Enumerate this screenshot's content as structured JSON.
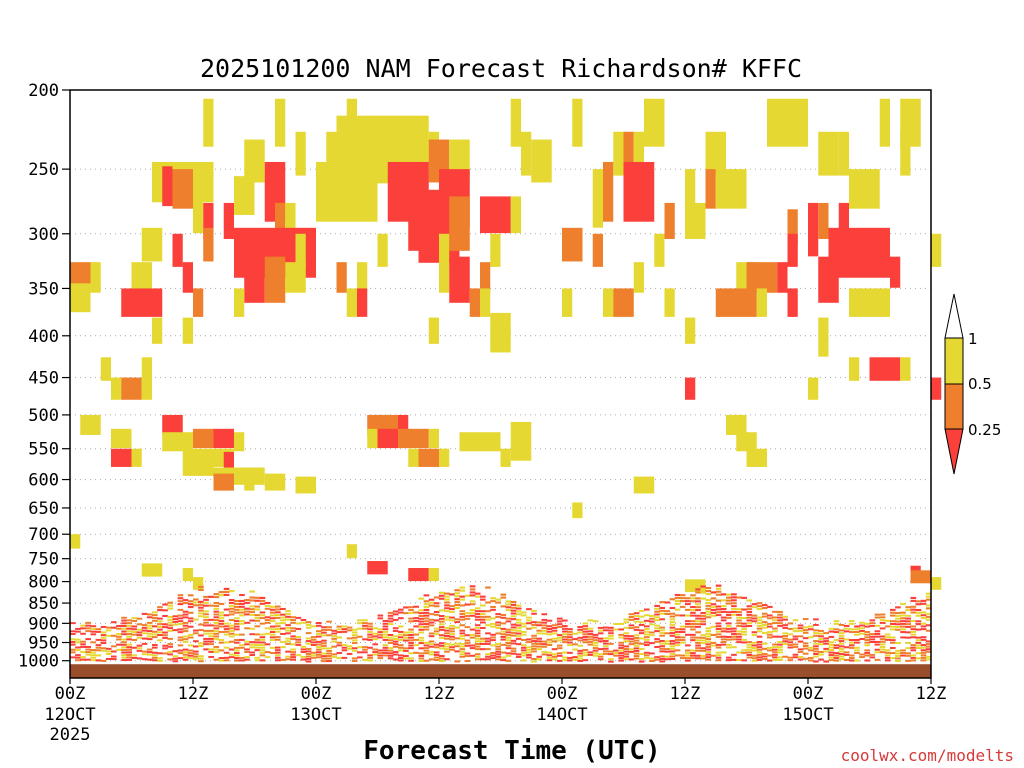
{
  "chart_data": {
    "type": "heatmap",
    "title": "2025101200 NAM Forecast Richardson# KFFC",
    "xlabel": "Forecast Time (UTC)",
    "ylabel": "",
    "credit": "coolwx.com/modelts",
    "y_ticks": [
      "200",
      "250",
      "300",
      "350",
      "400",
      "450",
      "500",
      "550",
      "600",
      "650",
      "700",
      "750",
      "800",
      "850",
      "900",
      "950",
      "1000"
    ],
    "y_values": [
      200,
      250,
      300,
      350,
      400,
      450,
      500,
      550,
      600,
      650,
      700,
      750,
      800,
      850,
      900,
      950,
      1000
    ],
    "y_range_hpa": [
      200,
      1050
    ],
    "x_range_hours": [
      0,
      84
    ],
    "x_ticks": [
      {
        "hour": 0,
        "label": "00Z",
        "date": "12OCT",
        "year": "2025"
      },
      {
        "hour": 12,
        "label": "12Z",
        "date": "",
        "year": ""
      },
      {
        "hour": 24,
        "label": "00Z",
        "date": "13OCT",
        "year": ""
      },
      {
        "hour": 36,
        "label": "12Z",
        "date": "",
        "year": ""
      },
      {
        "hour": 48,
        "label": "00Z",
        "date": "14OCT",
        "year": ""
      },
      {
        "hour": 60,
        "label": "12Z",
        "date": "",
        "year": ""
      },
      {
        "hour": 72,
        "label": "00Z",
        "date": "15OCT",
        "year": ""
      },
      {
        "hour": 84,
        "label": "12Z",
        "date": "",
        "year": ""
      }
    ],
    "legend": {
      "placement": "right",
      "labels": [
        "1",
        "0.5",
        "0.25"
      ],
      "colors": [
        "#ffffff",
        "#e6d832",
        "#ee7f2d",
        "#fb3f3a"
      ]
    },
    "ground_color": "#9a4e2b",
    "grid": "dotted",
    "cells": [
      [
        13,
        205,
        1,
        2
      ],
      [
        20,
        205,
        1,
        2
      ],
      [
        27,
        205,
        1,
        2
      ],
      [
        43,
        205,
        1,
        2
      ],
      [
        49,
        205,
        1,
        2
      ],
      [
        56,
        205,
        2,
        2
      ],
      [
        68,
        205,
        4,
        2
      ],
      [
        79,
        205,
        1,
        2
      ],
      [
        81,
        205,
        2,
        2
      ],
      [
        17,
        230,
        2,
        2
      ],
      [
        22,
        225,
        1,
        2
      ],
      [
        25,
        225,
        1,
        2
      ],
      [
        26,
        215,
        9,
        3
      ],
      [
        35,
        225,
        1,
        2
      ],
      [
        35,
        230,
        2,
        2,
        2
      ],
      [
        37,
        230,
        2,
        2
      ],
      [
        44,
        225,
        1,
        2
      ],
      [
        45,
        230,
        2,
        2
      ],
      [
        53,
        225,
        1,
        2
      ],
      [
        54,
        225,
        1,
        2,
        2
      ],
      [
        55,
        225,
        1,
        2
      ],
      [
        62,
        225,
        2,
        2
      ],
      [
        73,
        225,
        2,
        2
      ],
      [
        75,
        225,
        1,
        2
      ],
      [
        81,
        225,
        1,
        2
      ],
      [
        8,
        245,
        6,
        2
      ],
      [
        9,
        248,
        1,
        2,
        3
      ],
      [
        10,
        250,
        2,
        2,
        2
      ],
      [
        16,
        255,
        2,
        2
      ],
      [
        19,
        245,
        2,
        3,
        3
      ],
      [
        24,
        245,
        6,
        3
      ],
      [
        31,
        245,
        4,
        3,
        3
      ],
      [
        36,
        250,
        3,
        3,
        3
      ],
      [
        51,
        250,
        1,
        3
      ],
      [
        52,
        245,
        1,
        3,
        2
      ],
      [
        54,
        245,
        3,
        3,
        3
      ],
      [
        60,
        250,
        1,
        2
      ],
      [
        62,
        250,
        1,
        2,
        2
      ],
      [
        63,
        250,
        3,
        2
      ],
      [
        76,
        250,
        3,
        2
      ],
      [
        12,
        270,
        1,
        2
      ],
      [
        13,
        275,
        1,
        2,
        3
      ],
      [
        15,
        275,
        1,
        2,
        3
      ],
      [
        20,
        275,
        1,
        2,
        2
      ],
      [
        21,
        275,
        1,
        2
      ],
      [
        33,
        270,
        1,
        3,
        3
      ],
      [
        34,
        265,
        4,
        4,
        3
      ],
      [
        37,
        270,
        2,
        3,
        2
      ],
      [
        40,
        270,
        3,
        2,
        3
      ],
      [
        43,
        270,
        1,
        2
      ],
      [
        58,
        275,
        1,
        2,
        2
      ],
      [
        60,
        275,
        2,
        2
      ],
      [
        70,
        280,
        1,
        2,
        2
      ],
      [
        72,
        275,
        1,
        3,
        3
      ],
      [
        73,
        275,
        1,
        2,
        2
      ],
      [
        75,
        275,
        1,
        3,
        3
      ],
      [
        7,
        295,
        2,
        2
      ],
      [
        10,
        300,
        1,
        2,
        3
      ],
      [
        13,
        295,
        1,
        2,
        2
      ],
      [
        16,
        295,
        8,
        3,
        3
      ],
      [
        22,
        300,
        1,
        2
      ],
      [
        30,
        300,
        1,
        2
      ],
      [
        36,
        300,
        1,
        2
      ],
      [
        41,
        300,
        1,
        2
      ],
      [
        48,
        295,
        2,
        2,
        2
      ],
      [
        51,
        300,
        1,
        2,
        2
      ],
      [
        57,
        300,
        1,
        2
      ],
      [
        70,
        300,
        1,
        2,
        3
      ],
      [
        74,
        295,
        6,
        3,
        3
      ],
      [
        84,
        300,
        1,
        2
      ],
      [
        0,
        325,
        2,
        2,
        2
      ],
      [
        2,
        325,
        1,
        2
      ],
      [
        6,
        325,
        2,
        2
      ],
      [
        11,
        325,
        1,
        2,
        3
      ],
      [
        17,
        320,
        2,
        3,
        3
      ],
      [
        19,
        320,
        2,
        3,
        2
      ],
      [
        21,
        325,
        2,
        2
      ],
      [
        26,
        325,
        1,
        2,
        2
      ],
      [
        28,
        325,
        1,
        2
      ],
      [
        36,
        325,
        1,
        2
      ],
      [
        37,
        320,
        2,
        3,
        3
      ],
      [
        40,
        325,
        1,
        2,
        2
      ],
      [
        55,
        325,
        1,
        2
      ],
      [
        65,
        325,
        2,
        2
      ],
      [
        66,
        325,
        3,
        2,
        2
      ],
      [
        69,
        325,
        1,
        2,
        3
      ],
      [
        73,
        320,
        2,
        3,
        3
      ],
      [
        80,
        320,
        1,
        2,
        3
      ],
      [
        0,
        345,
        2,
        2
      ],
      [
        5,
        350,
        4,
        2,
        3
      ],
      [
        12,
        350,
        1,
        2,
        2
      ],
      [
        16,
        350,
        1,
        2
      ],
      [
        27,
        350,
        1,
        2
      ],
      [
        28,
        350,
        1,
        2,
        3
      ],
      [
        39,
        350,
        1,
        2,
        2
      ],
      [
        40,
        350,
        1,
        2
      ],
      [
        48,
        350,
        1,
        2
      ],
      [
        52,
        350,
        1,
        2
      ],
      [
        53,
        350,
        2,
        2,
        2
      ],
      [
        58,
        350,
        1,
        2
      ],
      [
        63,
        350,
        4,
        2,
        2
      ],
      [
        67,
        350,
        1,
        2
      ],
      [
        70,
        350,
        1,
        2,
        3
      ],
      [
        76,
        350,
        4,
        2
      ],
      [
        8,
        380,
        1,
        2
      ],
      [
        11,
        380,
        1,
        2
      ],
      [
        35,
        380,
        1,
        2
      ],
      [
        41,
        375,
        2,
        3
      ],
      [
        60,
        380,
        1,
        2
      ],
      [
        73,
        380,
        1,
        3
      ],
      [
        3,
        425,
        1,
        2
      ],
      [
        7,
        425,
        1,
        2
      ],
      [
        76,
        425,
        1,
        2
      ],
      [
        78,
        425,
        3,
        2,
        3
      ],
      [
        81,
        425,
        1,
        2
      ],
      [
        4,
        450,
        1,
        2
      ],
      [
        5,
        450,
        2,
        2,
        2
      ],
      [
        7,
        450,
        1,
        2
      ],
      [
        60,
        450,
        1,
        2,
        3
      ],
      [
        72,
        450,
        1,
        2
      ],
      [
        84,
        450,
        1,
        2,
        3
      ],
      [
        1,
        500,
        2,
        2
      ],
      [
        9,
        500,
        2,
        2,
        3
      ],
      [
        29,
        500,
        3,
        2,
        2
      ],
      [
        32,
        500,
        1,
        2,
        3
      ],
      [
        64,
        500,
        2,
        2
      ],
      [
        4,
        520,
        2,
        2
      ],
      [
        9,
        525,
        3,
        2
      ],
      [
        12,
        520,
        2,
        2,
        2
      ],
      [
        14,
        520,
        2,
        2,
        3
      ],
      [
        16,
        525,
        1,
        2
      ],
      [
        29,
        520,
        1,
        2
      ],
      [
        30,
        520,
        2,
        2,
        3
      ],
      [
        32,
        520,
        3,
        2,
        2
      ],
      [
        35,
        520,
        1,
        2
      ],
      [
        38,
        525,
        4,
        2
      ],
      [
        43,
        510,
        2,
        4
      ],
      [
        65,
        525,
        2,
        2
      ],
      [
        4,
        550,
        2,
        2,
        3
      ],
      [
        6,
        550,
        1,
        2
      ],
      [
        11,
        550,
        3,
        3
      ],
      [
        14,
        550,
        2,
        2
      ],
      [
        15,
        555,
        1,
        2,
        3
      ],
      [
        33,
        550,
        1,
        2
      ],
      [
        34,
        550,
        2,
        2,
        2
      ],
      [
        36,
        550,
        1,
        2
      ],
      [
        42,
        550,
        1,
        2
      ],
      [
        66,
        550,
        2,
        2
      ],
      [
        14,
        580,
        5,
        2
      ],
      [
        14,
        590,
        2,
        2,
        2
      ],
      [
        17,
        590,
        1,
        2
      ],
      [
        19,
        590,
        2,
        2
      ],
      [
        22,
        595,
        2,
        2
      ],
      [
        55,
        595,
        2,
        2
      ],
      [
        49,
        640,
        1,
        2
      ],
      [
        0,
        700,
        1,
        2
      ],
      [
        27,
        720,
        1,
        2
      ],
      [
        29,
        755,
        2,
        2,
        3
      ],
      [
        7,
        760,
        2,
        2
      ],
      [
        11,
        770,
        1,
        2
      ],
      [
        33,
        770,
        2,
        2,
        3
      ],
      [
        35,
        770,
        1,
        2
      ],
      [
        12,
        790,
        1,
        2
      ],
      [
        60,
        795,
        2,
        2
      ],
      [
        82,
        765,
        1,
        2,
        3
      ],
      [
        82,
        775,
        2,
        2,
        2
      ],
      [
        84,
        790,
        1,
        2
      ]
    ]
  }
}
